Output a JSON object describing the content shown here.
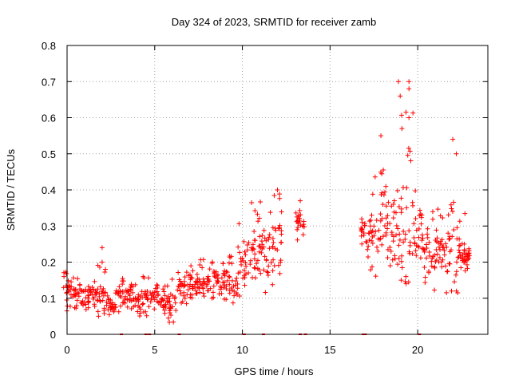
{
  "chart_data": {
    "type": "scatter",
    "title": "Day 324 of 2023, SRMTID for receiver zamb",
    "xlabel": "GPS time / hours",
    "ylabel": "SRMTID / TECUs",
    "xlim": [
      0,
      24
    ],
    "ylim": [
      0,
      0.8
    ],
    "xticks": [
      0,
      5,
      10,
      15,
      20
    ],
    "yticks": [
      0,
      0.1,
      0.2,
      0.3,
      0.4,
      0.5,
      0.6,
      0.7,
      0.8
    ],
    "xtick_labels": [
      "0",
      "5",
      "10",
      "15",
      "20"
    ],
    "ytick_labels": [
      "0",
      "0.1",
      "0.2",
      "0.3",
      "0.4",
      "0.5",
      "0.6",
      "0.7",
      "0.8"
    ],
    "grid": true,
    "marker": "+",
    "color": "#ff0000",
    "series": [
      {
        "name": "SRMTID",
        "envelope": [
          {
            "x": 0.0,
            "y_min": 0.06,
            "y_mean": 0.13,
            "y_max": 0.19
          },
          {
            "x": 0.5,
            "y_min": 0.06,
            "y_mean": 0.11,
            "y_max": 0.16
          },
          {
            "x": 1.0,
            "y_min": 0.06,
            "y_mean": 0.11,
            "y_max": 0.16
          },
          {
            "x": 1.5,
            "y_min": 0.07,
            "y_mean": 0.11,
            "y_max": 0.15
          },
          {
            "x": 2.0,
            "y_min": 0.05,
            "y_mean": 0.09,
            "y_max": 0.24
          },
          {
            "x": 2.5,
            "y_min": 0.05,
            "y_mean": 0.08,
            "y_max": 0.12
          },
          {
            "x": 3.0,
            "y_min": 0.06,
            "y_mean": 0.11,
            "y_max": 0.18
          },
          {
            "x": 3.5,
            "y_min": 0.06,
            "y_mean": 0.11,
            "y_max": 0.15
          },
          {
            "x": 4.0,
            "y_min": 0.05,
            "y_mean": 0.09,
            "y_max": 0.14
          },
          {
            "x": 4.5,
            "y_min": 0.05,
            "y_mean": 0.1,
            "y_max": 0.16
          },
          {
            "x": 5.0,
            "y_min": 0.05,
            "y_mean": 0.11,
            "y_max": 0.16
          },
          {
            "x": 5.5,
            "y_min": 0.04,
            "y_mean": 0.09,
            "y_max": 0.14
          },
          {
            "x": 6.0,
            "y_min": 0.03,
            "y_mean": 0.08,
            "y_max": 0.16
          },
          {
            "x": 6.5,
            "y_min": 0.08,
            "y_mean": 0.13,
            "y_max": 0.18
          },
          {
            "x": 7.0,
            "y_min": 0.08,
            "y_mean": 0.14,
            "y_max": 0.2
          },
          {
            "x": 7.5,
            "y_min": 0.09,
            "y_mean": 0.15,
            "y_max": 0.21
          },
          {
            "x": 8.0,
            "y_min": 0.09,
            "y_mean": 0.14,
            "y_max": 0.22
          },
          {
            "x": 8.5,
            "y_min": 0.1,
            "y_mean": 0.15,
            "y_max": 0.25
          },
          {
            "x": 9.0,
            "y_min": 0.09,
            "y_mean": 0.15,
            "y_max": 0.23
          },
          {
            "x": 9.5,
            "y_min": 0.05,
            "y_mean": 0.14,
            "y_max": 0.22
          },
          {
            "x": 10.0,
            "y_min": 0.08,
            "y_mean": 0.2,
            "y_max": 0.31
          },
          {
            "x": 10.5,
            "y_min": 0.1,
            "y_mean": 0.23,
            "y_max": 0.38
          },
          {
            "x": 11.0,
            "y_min": 0.13,
            "y_mean": 0.25,
            "y_max": 0.37
          },
          {
            "x": 11.5,
            "y_min": 0.1,
            "y_mean": 0.22,
            "y_max": 0.34
          },
          {
            "x": 12.0,
            "y_min": 0.16,
            "y_mean": 0.27,
            "y_max": 0.4
          },
          {
            "x": 13.3,
            "y_min": 0.26,
            "y_mean": 0.31,
            "y_max": 0.37
          },
          {
            "x": 17.0,
            "y_min": 0.18,
            "y_mean": 0.27,
            "y_max": 0.34
          },
          {
            "x": 17.5,
            "y_min": 0.14,
            "y_mean": 0.29,
            "y_max": 0.44
          },
          {
            "x": 18.0,
            "y_min": 0.16,
            "y_mean": 0.32,
            "y_max": 0.54
          },
          {
            "x": 18.5,
            "y_min": 0.14,
            "y_mean": 0.28,
            "y_max": 0.45
          },
          {
            "x": 19.0,
            "y_min": 0.15,
            "y_mean": 0.33,
            "y_max": 0.7
          },
          {
            "x": 19.5,
            "y_min": 0.14,
            "y_mean": 0.3,
            "y_max": 0.7
          },
          {
            "x": 20.0,
            "y_min": 0.15,
            "y_mean": 0.3,
            "y_max": 0.49
          },
          {
            "x": 20.5,
            "y_min": 0.14,
            "y_mean": 0.25,
            "y_max": 0.35
          },
          {
            "x": 21.0,
            "y_min": 0.11,
            "y_mean": 0.22,
            "y_max": 0.35
          },
          {
            "x": 21.5,
            "y_min": 0.11,
            "y_mean": 0.22,
            "y_max": 0.33
          },
          {
            "x": 22.0,
            "y_min": 0.12,
            "y_mean": 0.26,
            "y_max": 0.54
          },
          {
            "x": 22.5,
            "y_min": 0.1,
            "y_mean": 0.21,
            "y_max": 0.34
          },
          {
            "x": 22.8,
            "y_min": 0.13,
            "y_mean": 0.21,
            "y_max": 0.26
          }
        ],
        "outliers": [
          {
            "x": 2.0,
            "y": 0.24
          },
          {
            "x": 2.0,
            "y": 0.2
          },
          {
            "x": 17.9,
            "y": 0.55
          },
          {
            "x": 18.9,
            "y": 0.7
          },
          {
            "x": 19.0,
            "y": 0.66
          },
          {
            "x": 19.1,
            "y": 0.57
          },
          {
            "x": 19.5,
            "y": 0.7
          },
          {
            "x": 19.5,
            "y": 0.68
          },
          {
            "x": 19.5,
            "y": 0.6
          },
          {
            "x": 22.0,
            "y": 0.54
          },
          {
            "x": 22.2,
            "y": 0.5
          },
          {
            "x": 13.3,
            "y": 0.37
          },
          {
            "x": 12.0,
            "y": 0.4
          }
        ]
      }
    ],
    "zero_markers_x": [
      3.1,
      4.5,
      4.7,
      6.4,
      10.1,
      11.2,
      13.3,
      13.6,
      16.9,
      17.0,
      20.1
    ]
  }
}
